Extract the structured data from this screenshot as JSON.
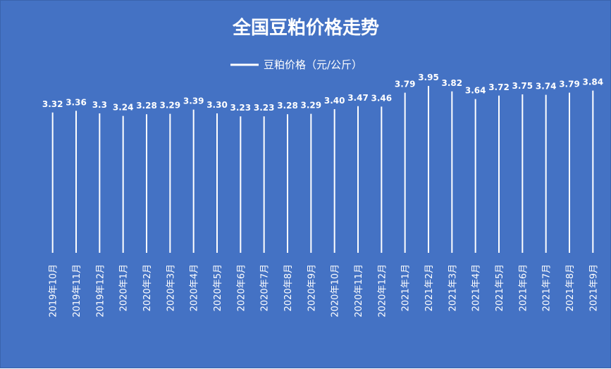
{
  "chart_data": {
    "type": "bar",
    "title": "全国豆粕价格走势",
    "legend": {
      "position": "top",
      "entries": [
        "豆粕价格（元/公斤）"
      ]
    },
    "series": [
      {
        "name": "豆粕价格（元/公斤）",
        "values": [
          3.32,
          3.36,
          3.3,
          3.24,
          3.28,
          3.29,
          3.39,
          3.3,
          3.23,
          3.23,
          3.28,
          3.29,
          3.4,
          3.47,
          3.46,
          3.79,
          3.95,
          3.82,
          3.64,
          3.72,
          3.75,
          3.74,
          3.79,
          3.84
        ],
        "labels": [
          "3.32",
          "3.36",
          "3.3",
          "3.24",
          "3.28",
          "3.29",
          "3.39",
          "3.30",
          "3.23",
          "3.23",
          "3.28",
          "3.29",
          "3.40",
          "3.47",
          "3.46",
          "3.79",
          "3.95",
          "3.82",
          "3.64",
          "3.72",
          "3.75",
          "3.74",
          "3.79",
          "3.84"
        ]
      }
    ],
    "categories": [
      "2019年10月",
      "2019年11月",
      "2019年12月",
      "2020年1月",
      "2020年2月",
      "2020年3月",
      "2020年4月",
      "2020年5月",
      "2020年6月",
      "2020年7月",
      "2020年8月",
      "2020年9月",
      "2020年10月",
      "2020年11月",
      "2020年12月",
      "2021年1月",
      "2021年2月",
      "2021年3月",
      "2021年4月",
      "2021年5月",
      "2021年6月",
      "2021年7月",
      "2021年8月",
      "2021年9月"
    ],
    "ylim": [
      0,
      4
    ],
    "grid": false,
    "colors": {
      "background": "#4472c4",
      "bar": "#ffffff",
      "text": "#ffffff"
    }
  }
}
